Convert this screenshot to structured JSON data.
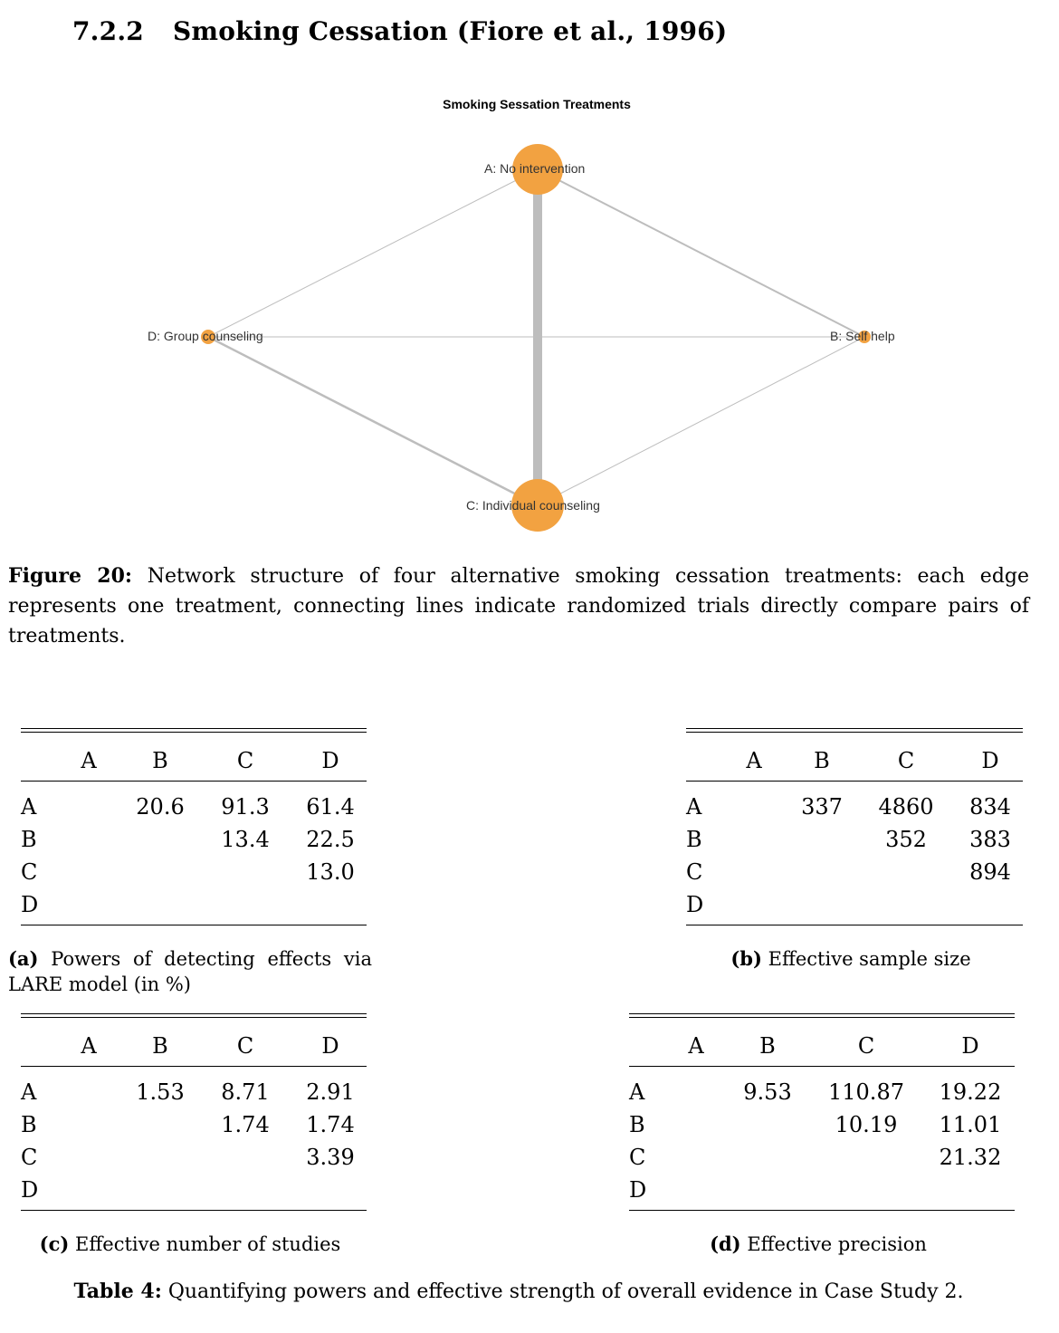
{
  "section": {
    "number": "7.2.2",
    "title": "Smoking Cessation (Fiore et al., 1996)"
  },
  "figure": {
    "title": "Smoking Sessation Treatments",
    "nodes": {
      "A": {
        "label": "A: No intervention",
        "color": "#f2a241"
      },
      "B": {
        "label": "B: Self help",
        "color": "#f2a241"
      },
      "C": {
        "label": "C: Individual counseling",
        "color": "#f2a241"
      },
      "D": {
        "label": "D: Group counseling",
        "color": "#f2a241"
      }
    },
    "edge_color": "#bdbdbd",
    "caption_label": "Figure 20:",
    "caption_text": "Network structure of four alternative smoking cessation treatments: each edge represents one treatment, connecting lines indicate randomized trials directly compare pairs of treatments."
  },
  "tables": {
    "a": {
      "caption_label": "(a)",
      "caption_line1": "Powers of detecting effects via",
      "caption_line2": "LARE model (in %)",
      "headers": [
        "A",
        "B",
        "C",
        "D"
      ],
      "rows": [
        {
          "label": "A",
          "cells": [
            "",
            "20.6",
            "91.3",
            "61.4"
          ]
        },
        {
          "label": "B",
          "cells": [
            "",
            "",
            "13.4",
            "22.5"
          ]
        },
        {
          "label": "C",
          "cells": [
            "",
            "",
            "",
            "13.0"
          ]
        },
        {
          "label": "D",
          "cells": [
            "",
            "",
            "",
            ""
          ]
        }
      ]
    },
    "b": {
      "caption_label": "(b)",
      "caption_text": "Effective sample size",
      "headers": [
        "A",
        "B",
        "C",
        "D"
      ],
      "rows": [
        {
          "label": "A",
          "cells": [
            "",
            "337",
            "4860",
            "834"
          ]
        },
        {
          "label": "B",
          "cells": [
            "",
            "",
            "352",
            "383"
          ]
        },
        {
          "label": "C",
          "cells": [
            "",
            "",
            "",
            "894"
          ]
        },
        {
          "label": "D",
          "cells": [
            "",
            "",
            "",
            ""
          ]
        }
      ]
    },
    "c": {
      "caption_label": "(c)",
      "caption_text": "Effective number of studies",
      "headers": [
        "A",
        "B",
        "C",
        "D"
      ],
      "rows": [
        {
          "label": "A",
          "cells": [
            "",
            "1.53",
            "8.71",
            "2.91"
          ]
        },
        {
          "label": "B",
          "cells": [
            "",
            "",
            "1.74",
            "1.74"
          ]
        },
        {
          "label": "C",
          "cells": [
            "",
            "",
            "",
            "3.39"
          ]
        },
        {
          "label": "D",
          "cells": [
            "",
            "",
            "",
            ""
          ]
        }
      ]
    },
    "d": {
      "caption_label": "(d)",
      "caption_text": "Effective precision",
      "headers": [
        "A",
        "B",
        "C",
        "D"
      ],
      "rows": [
        {
          "label": "A",
          "cells": [
            "",
            "9.53",
            "110.87",
            "19.22"
          ]
        },
        {
          "label": "B",
          "cells": [
            "",
            "",
            "10.19",
            "11.01"
          ]
        },
        {
          "label": "C",
          "cells": [
            "",
            "",
            "",
            "21.32"
          ]
        },
        {
          "label": "D",
          "cells": [
            "",
            "",
            "",
            ""
          ]
        }
      ]
    }
  },
  "table_caption": {
    "label": "Table 4:",
    "text": "Quantifying powers and effective strength of overall evidence in Case Study 2."
  }
}
